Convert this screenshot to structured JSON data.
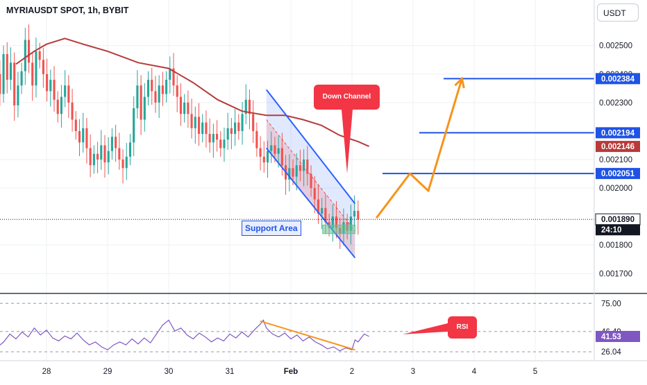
{
  "header": {
    "symbol_line": "MYRIAUSDT SPOT, 1h, BYBIT"
  },
  "currency_button": {
    "label": "USDT"
  },
  "colors": {
    "up": "#26a69a",
    "down": "#ef5350",
    "ma": "#b83a3a",
    "channel": "#2962ff",
    "level": "#1e53e5",
    "projection": "#f7931a",
    "rsi_line": "#7e57c2",
    "rsi_trend": "#f7931a",
    "callout": "#f23645",
    "support": "#5fc494"
  },
  "annotations": {
    "down_channel": "Down Channel",
    "support_area": "Support Area",
    "rsi": "RSI"
  },
  "chart_data": [
    {
      "type": "candlestick",
      "title": "MYRIAUSDT SPOT, 1h, BYBIT",
      "interval": "1h",
      "ylim": [
        0.00163,
        0.00266
      ],
      "y_ticks": [
        "0.002500",
        "0.002400",
        "0.002300",
        "0.002100",
        "0.002000",
        "0.001800",
        "0.001700"
      ],
      "x_ticks": [
        "28",
        "29",
        "30",
        "31",
        "Feb",
        "2",
        "3",
        "4",
        "5"
      ],
      "price_labels": [
        {
          "text": "0.002384",
          "value": 0.002384,
          "kind": "level"
        },
        {
          "text": "0.002194",
          "value": 0.002194,
          "kind": "level"
        },
        {
          "text": "0.002146",
          "value": 0.002146,
          "kind": "ma"
        },
        {
          "text": "0.002051",
          "value": 0.002051,
          "kind": "level"
        },
        {
          "text": "0.001890",
          "value": 0.00189,
          "kind": "last"
        },
        {
          "text": "24:10",
          "kind": "countdown"
        }
      ],
      "levels": [
        0.002384,
        0.002194,
        0.002051
      ],
      "last_price": 0.00189,
      "moving_average": [
        [
          27.5,
          0.002435
        ],
        [
          27.8,
          0.00248
        ],
        [
          28.0,
          0.002505
        ],
        [
          28.3,
          0.002525
        ],
        [
          28.6,
          0.002505
        ],
        [
          29.0,
          0.00248
        ],
        [
          29.5,
          0.00244
        ],
        [
          30.0,
          0.00242
        ],
        [
          30.4,
          0.00237
        ],
        [
          30.8,
          0.00231
        ],
        [
          31.2,
          0.00227
        ],
        [
          31.6,
          0.002255
        ],
        [
          31.9,
          0.002255
        ],
        [
          32.2,
          0.00224
        ],
        [
          32.5,
          0.00222
        ],
        [
          32.8,
          0.002185
        ],
        [
          33.1,
          0.002163
        ],
        [
          33.28,
          0.002146
        ]
      ],
      "candles_close": [
        0.00218,
        0.00231,
        0.00225,
        0.0024,
        0.00233,
        0.00247,
        0.00238,
        0.00244,
        0.00229,
        0.00236,
        0.00241,
        0.00252,
        0.00244,
        0.00236,
        0.00248,
        0.00245,
        0.0024,
        0.00234,
        0.00238,
        0.00231,
        0.00226,
        0.00232,
        0.00236,
        0.0023,
        0.00224,
        0.0022,
        0.00216,
        0.00221,
        0.00214,
        0.00208,
        0.00212,
        0.0021,
        0.00215,
        0.00209,
        0.00213,
        0.00218,
        0.00214,
        0.0021,
        0.00207,
        0.00211,
        0.00216,
        0.00228,
        0.00236,
        0.00224,
        0.00232,
        0.00238,
        0.00234,
        0.0023,
        0.00236,
        0.00233,
        0.00238,
        0.00242,
        0.00236,
        0.00232,
        0.00226,
        0.0023,
        0.00226,
        0.00221,
        0.00225,
        0.00219,
        0.00223,
        0.00219,
        0.00216,
        0.00219,
        0.00217,
        0.00214,
        0.00217,
        0.00221,
        0.00219,
        0.00223,
        0.0022,
        0.00226,
        0.00231,
        0.00226,
        0.0022,
        0.00214,
        0.00211,
        0.00209,
        0.00213,
        0.00215,
        0.00212,
        0.00214,
        0.00208,
        0.00203,
        0.00207,
        0.00204,
        0.00208,
        0.00206,
        0.0021,
        0.00205,
        0.002,
        0.00196,
        0.00191,
        0.00193,
        0.00188,
        0.00186,
        0.0019,
        0.00186,
        0.00184,
        0.00188,
        0.00185,
        0.0019,
        0.00192,
        0.00189
      ],
      "candles_x_range": [
        27.0,
        33.1
      ],
      "channel": {
        "upper": [
          [
            31.6,
            0.002345
          ],
          [
            33.05,
            0.001945
          ]
        ],
        "lower": [
          [
            31.6,
            0.00214
          ],
          [
            33.05,
            0.001755
          ]
        ],
        "mid": [
          [
            31.6,
            0.00224
          ],
          [
            33.05,
            0.00185
          ]
        ]
      },
      "support_zone": {
        "x": [
          32.52,
          33.05
        ],
        "y": [
          0.00184,
          0.00187
        ]
      },
      "projection_path": [
        [
          33.4,
          0.001895
        ],
        [
          33.95,
          0.002051
        ],
        [
          34.25,
          0.00199
        ],
        [
          34.8,
          0.002384
        ]
      ]
    },
    {
      "type": "line",
      "title": "RSI",
      "ylim": [
        17,
        85
      ],
      "y_ticks": [
        "75.00",
        "46.49",
        "26.04"
      ],
      "value_labels": [
        {
          "text": "46.49",
          "value": 46.49
        },
        {
          "text": "41.53",
          "value": 41.53
        },
        {
          "text": "26.04",
          "value": 26.04
        }
      ],
      "last_value": 41.53,
      "reference_lines": [
        75.0,
        46.49,
        26.04
      ],
      "trendline": [
        [
          31.5,
          57
        ],
        [
          33.05,
          28
        ]
      ],
      "series": [
        [
          27.0,
          22
        ],
        [
          27.1,
          27
        ],
        [
          27.2,
          31
        ],
        [
          27.3,
          36
        ],
        [
          27.4,
          44
        ],
        [
          27.5,
          39
        ],
        [
          27.6,
          46
        ],
        [
          27.7,
          41
        ],
        [
          27.8,
          50
        ],
        [
          27.9,
          43
        ],
        [
          28.0,
          48
        ],
        [
          28.1,
          40
        ],
        [
          28.2,
          37
        ],
        [
          28.3,
          42
        ],
        [
          28.4,
          39
        ],
        [
          28.5,
          45
        ],
        [
          28.6,
          38
        ],
        [
          28.7,
          33
        ],
        [
          28.8,
          36
        ],
        [
          28.9,
          31
        ],
        [
          29.0,
          28
        ],
        [
          29.1,
          33
        ],
        [
          29.2,
          36
        ],
        [
          29.3,
          33
        ],
        [
          29.4,
          39
        ],
        [
          29.5,
          34
        ],
        [
          29.6,
          40
        ],
        [
          29.7,
          35
        ],
        [
          29.8,
          44
        ],
        [
          29.9,
          53
        ],
        [
          30.0,
          58
        ],
        [
          30.1,
          47
        ],
        [
          30.2,
          50
        ],
        [
          30.3,
          43
        ],
        [
          30.4,
          39
        ],
        [
          30.5,
          45
        ],
        [
          30.6,
          41
        ],
        [
          30.7,
          36
        ],
        [
          30.8,
          40
        ],
        [
          30.9,
          37
        ],
        [
          31.0,
          44
        ],
        [
          31.1,
          40
        ],
        [
          31.2,
          46
        ],
        [
          31.3,
          41
        ],
        [
          31.4,
          48
        ],
        [
          31.5,
          54
        ],
        [
          31.55,
          58
        ],
        [
          31.6,
          50
        ],
        [
          31.7,
          44
        ],
        [
          31.8,
          41
        ],
        [
          31.9,
          45
        ],
        [
          32.0,
          39
        ],
        [
          32.1,
          43
        ],
        [
          32.2,
          37
        ],
        [
          32.3,
          41
        ],
        [
          32.4,
          36
        ],
        [
          32.5,
          33
        ],
        [
          32.6,
          29
        ],
        [
          32.7,
          31
        ],
        [
          32.8,
          27
        ],
        [
          32.9,
          30
        ],
        [
          33.0,
          28
        ],
        [
          33.05,
          38
        ],
        [
          33.1,
          36
        ],
        [
          33.2,
          44
        ],
        [
          33.28,
          41.53
        ]
      ]
    }
  ]
}
